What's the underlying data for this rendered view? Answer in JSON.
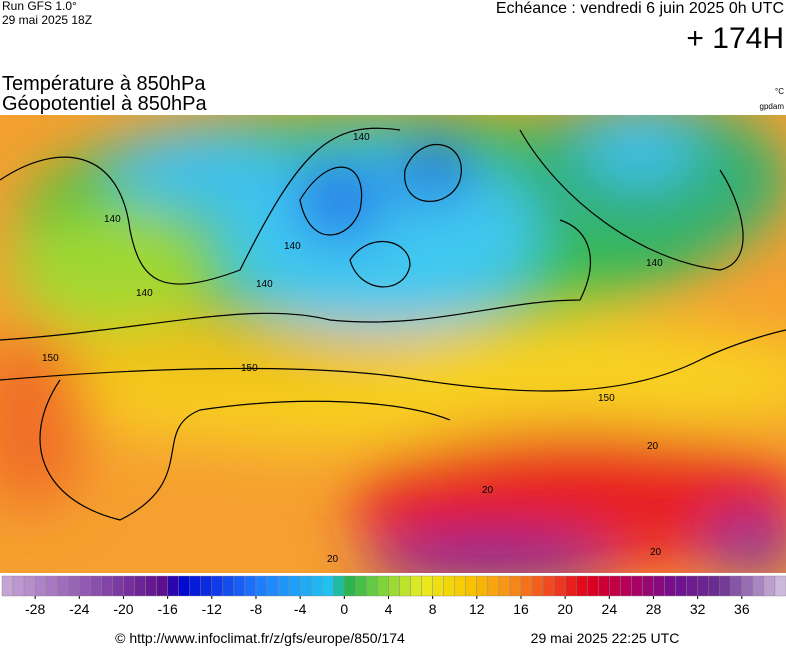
{
  "header": {
    "run": "Run GFS 1.0°",
    "run_date": "29 mai 2025 18Z",
    "valid": "Echéance : vendredi 6 juin 2025 0h UTC",
    "lead": "+ 174H",
    "title_temp": "Température à 850hPa",
    "title_geo": "Géopotentiel à 850hPa",
    "unit_temp": "°C",
    "unit_geo": "gpdam"
  },
  "map": {
    "contour_labels": [
      "140",
      "140",
      "140",
      "140",
      "140",
      "140",
      "150",
      "150",
      "150",
      "20",
      "20",
      "20",
      "20"
    ]
  },
  "colorbar": {
    "range": [
      -31,
      40
    ],
    "ticks": [
      -28,
      -24,
      -20,
      -16,
      -12,
      -8,
      -4,
      0,
      4,
      8,
      12,
      16,
      20,
      24,
      28,
      32,
      36
    ],
    "stops": [
      {
        "value": -31,
        "color": "#c8a8d8"
      },
      {
        "value": -16,
        "color": "#5a0a8a"
      },
      {
        "value": -15,
        "color": "#0000d0"
      },
      {
        "value": -8,
        "color": "#1e78ff"
      },
      {
        "value": -1,
        "color": "#20c8f0"
      },
      {
        "value": 0,
        "color": "#20b050"
      },
      {
        "value": 3,
        "color": "#70d040"
      },
      {
        "value": 7,
        "color": "#e8ec20"
      },
      {
        "value": 11,
        "color": "#f8c800"
      },
      {
        "value": 15,
        "color": "#f89018"
      },
      {
        "value": 19,
        "color": "#f04020"
      },
      {
        "value": 22,
        "color": "#e00018"
      },
      {
        "value": 26,
        "color": "#b00060"
      },
      {
        "value": 30,
        "color": "#701090"
      },
      {
        "value": 34,
        "color": "#6a3090"
      },
      {
        "value": 40,
        "color": "#d8c4e4"
      }
    ]
  },
  "footer": {
    "url": "© http://www.infoclimat.fr/z/gfs/europe/850/174",
    "generated": "29 mai 2025 22:25 UTC"
  }
}
